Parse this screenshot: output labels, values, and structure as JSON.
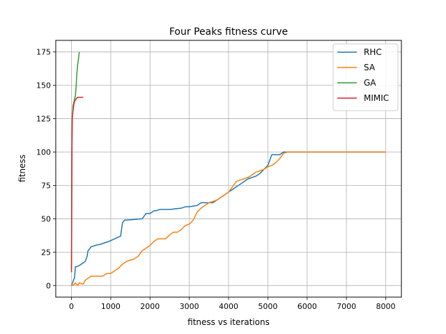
{
  "chart_data": {
    "type": "line",
    "title": "Four Peaks fitness curve",
    "xlabel": "fitness vs iterations",
    "ylabel": "fitness",
    "xlim": [
      -400,
      8400
    ],
    "ylim": [
      -8.7,
      183.7
    ],
    "xticks": [
      0,
      1000,
      2000,
      3000,
      4000,
      5000,
      6000,
      7000,
      8000
    ],
    "xtick_labels": [
      "0",
      "1000",
      "2000",
      "3000",
      "4000",
      "5000",
      "6000",
      "7000",
      "8000"
    ],
    "yticks": [
      0,
      25,
      50,
      75,
      100,
      125,
      150,
      175
    ],
    "ytick_labels": [
      "0",
      "25",
      "50",
      "75",
      "100",
      "125",
      "150",
      "175"
    ],
    "grid": true,
    "legend_position": "top-right",
    "series": [
      {
        "name": "RHC",
        "color": "#1f77b4",
        "x": [
          0,
          30,
          50,
          80,
          100,
          120,
          200,
          250,
          300,
          350,
          400,
          420,
          450,
          500,
          600,
          750,
          950,
          1100,
          1250,
          1300,
          1350,
          1400,
          1800,
          1850,
          1900,
          1950,
          2000,
          2050,
          2100,
          2150,
          2250,
          2500,
          2800,
          2900,
          3000,
          3200,
          3300,
          3400,
          3500,
          3600,
          3700,
          3800,
          3900,
          4000,
          4100,
          4200,
          4300,
          4400,
          4500,
          4700,
          4800,
          5000,
          5100,
          5300,
          5400,
          8000
        ],
        "y": [
          0,
          2,
          4,
          6,
          14,
          14,
          15,
          16,
          17,
          18,
          22,
          26,
          27,
          29,
          30,
          31,
          33,
          35,
          37,
          47,
          49,
          49,
          50,
          52,
          54,
          54,
          54,
          55,
          56,
          56,
          57,
          57,
          58,
          59,
          59,
          60,
          62,
          62,
          62,
          62,
          64,
          66,
          68,
          70,
          72,
          74,
          76,
          78,
          80,
          82,
          84,
          90,
          98,
          98,
          100,
          100
        ]
      },
      {
        "name": "SA",
        "color": "#ff7f0e",
        "x": [
          0,
          50,
          100,
          150,
          200,
          300,
          350,
          400,
          500,
          600,
          700,
          800,
          900,
          1000,
          1100,
          1200,
          1300,
          1400,
          1500,
          1600,
          1700,
          1800,
          1900,
          2000,
          2100,
          2200,
          2300,
          2400,
          2500,
          2600,
          2700,
          2800,
          2900,
          3000,
          3100,
          3200,
          3300,
          3400,
          3500,
          3600,
          3700,
          3800,
          3900,
          4000,
          4100,
          4200,
          4300,
          4400,
          4500,
          4600,
          4700,
          4800,
          4900,
          5000,
          5100,
          5200,
          5300,
          5400,
          5500,
          8000
        ],
        "y": [
          1,
          0,
          2,
          0,
          2,
          1,
          4,
          5,
          7,
          7,
          7,
          7,
          9,
          9,
          11,
          13,
          16,
          18,
          19,
          20,
          22,
          26,
          28,
          30,
          33,
          35,
          35,
          35,
          38,
          40,
          40,
          42,
          45,
          46,
          49,
          55,
          58,
          60,
          62,
          63,
          64,
          66,
          68,
          70,
          74,
          78,
          79,
          80,
          81,
          83,
          85,
          86,
          87,
          89,
          90,
          92,
          95,
          99,
          100,
          100
        ]
      },
      {
        "name": "GA",
        "color": "#2ca02c",
        "x": [
          0,
          5,
          10,
          20,
          30,
          40,
          60,
          80,
          100,
          120,
          140,
          160,
          180,
          200
        ],
        "y": [
          12,
          60,
          100,
          125,
          130,
          135,
          137,
          140,
          142,
          150,
          160,
          166,
          170,
          175
        ]
      },
      {
        "name": "MIMIC",
        "color": "#d62728",
        "x": [
          0,
          5,
          10,
          15,
          20,
          30,
          40,
          60,
          80,
          100,
          150,
          200,
          300
        ],
        "y": [
          10,
          40,
          80,
          110,
          125,
          128,
          131,
          136,
          138,
          139,
          141,
          141,
          141
        ]
      }
    ]
  }
}
